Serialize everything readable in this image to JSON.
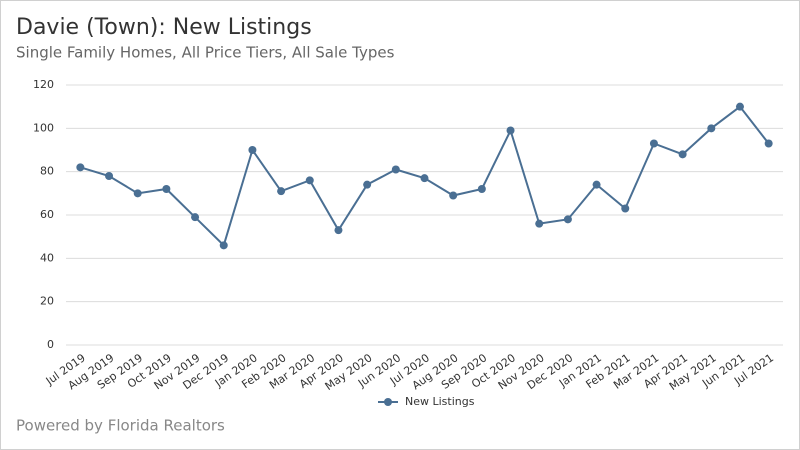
{
  "chart_data": {
    "type": "line",
    "title": "Davie (Town): New Listings",
    "subtitle": "Single Family Homes, All Price Tiers, All Sale Types",
    "footer": "Powered by Florida Realtors",
    "categories": [
      "Jul 2019",
      "Aug 2019",
      "Sep 2019",
      "Oct 2019",
      "Nov 2019",
      "Dec 2019",
      "Jan 2020",
      "Feb 2020",
      "Mar 2020",
      "Apr 2020",
      "May 2020",
      "Jun 2020",
      "Jul 2020",
      "Aug 2020",
      "Sep 2020",
      "Oct 2020",
      "Nov 2020",
      "Dec 2020",
      "Jan 2021",
      "Feb 2021",
      "Mar 2021",
      "Apr 2021",
      "May 2021",
      "Jun 2021",
      "Jul 2021"
    ],
    "series": [
      {
        "name": "New Listings",
        "color": "#4a6f93",
        "values": [
          82,
          78,
          70,
          72,
          59,
          46,
          90,
          71,
          76,
          53,
          74,
          81,
          77,
          69,
          72,
          99,
          56,
          58,
          74,
          63,
          93,
          88,
          100,
          110,
          93
        ]
      }
    ],
    "ylim": [
      0,
      120
    ],
    "yticks": [
      0,
      20,
      40,
      60,
      80,
      100,
      120
    ],
    "grid": true,
    "legend": "bottom"
  }
}
